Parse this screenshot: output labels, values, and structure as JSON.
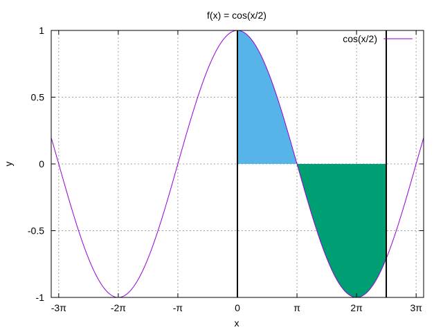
{
  "chart_data": {
    "type": "line",
    "title": "f(x) = cos(x/2)",
    "xlabel": "x",
    "ylabel": "y",
    "xlim": [
      -9.82,
      9.82
    ],
    "ylim": [
      -1,
      1
    ],
    "grid": true,
    "legend_position": "top-right",
    "x_ticks": [
      {
        "value": -9.4248,
        "label": "-3π"
      },
      {
        "value": -6.2832,
        "label": "-2π"
      },
      {
        "value": -3.1416,
        "label": "-π"
      },
      {
        "value": 0,
        "label": "0"
      },
      {
        "value": 3.1416,
        "label": "π"
      },
      {
        "value": 6.2832,
        "label": "2π"
      },
      {
        "value": 9.4248,
        "label": "3π"
      }
    ],
    "y_ticks": [
      {
        "value": 1,
        "label": "1"
      },
      {
        "value": 0.5,
        "label": "0.5"
      },
      {
        "value": 0,
        "label": "0"
      },
      {
        "value": -0.5,
        "label": "-0.5"
      },
      {
        "value": -1,
        "label": "-1"
      }
    ],
    "series": [
      {
        "name": "cos(x/2)",
        "function": "cos(x/2)",
        "color": "#9400d3"
      }
    ],
    "filled_regions": [
      {
        "x_from": 0,
        "x_to": 3.1416,
        "color": "#56b4e9"
      },
      {
        "x_from": 3.1416,
        "x_to": 7.85,
        "color": "#009e73"
      }
    ],
    "vertical_lines": [
      0,
      7.85
    ]
  }
}
